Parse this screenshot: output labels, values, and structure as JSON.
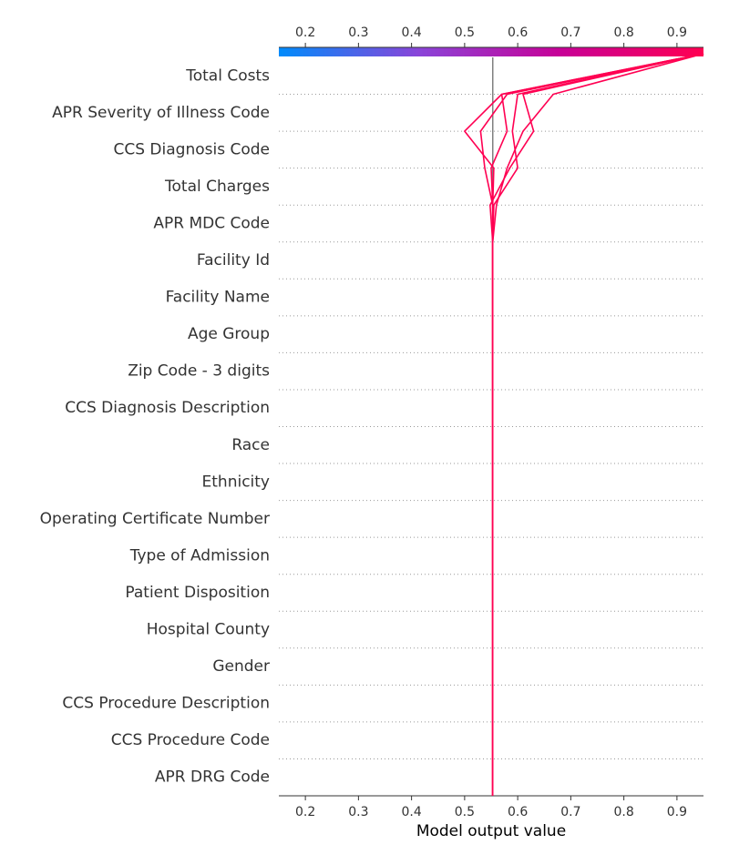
{
  "chart_data": {
    "type": "line",
    "subtype": "shap-decision-plot",
    "title": "",
    "xlabel": "Model output value",
    "ylabel": "",
    "xlim": [
      0.15,
      0.95
    ],
    "x_ticks": [
      0.2,
      0.3,
      0.4,
      0.5,
      0.6,
      0.7,
      0.8,
      0.9
    ],
    "x_tick_labels": [
      "0.2",
      "0.3",
      "0.4",
      "0.5",
      "0.6",
      "0.7",
      "0.8",
      "0.9"
    ],
    "base_value": 0.553,
    "features": [
      "Total Costs",
      "APR Severity of Illness Code",
      "CCS Diagnosis Code",
      "Total Charges",
      "APR MDC Code",
      "Facility Id",
      "Facility Name",
      "Age Group",
      "Zip Code - 3 digits",
      "CCS Diagnosis Description",
      "Race",
      "Ethnicity",
      "Operating Certificate Number",
      "Type of Admission",
      "Patient Disposition",
      "Hospital County",
      "Gender",
      "CCS Procedure Description",
      "CCS Procedure Code",
      "APR DRG Code"
    ],
    "colorbar": {
      "colors": [
        "#008bfb",
        "#8b44d8",
        "#c80096",
        "#ff0052"
      ],
      "range": [
        0.15,
        0.95
      ]
    },
    "line_color": "#ff0052",
    "base_line_color": "#808080",
    "gridlines": "dotted",
    "series": [
      {
        "values": [
          0.553,
          0.553,
          0.555,
          0.5,
          0.57,
          0.95
        ]
      },
      {
        "values": [
          0.553,
          0.553,
          0.538,
          0.53,
          0.58,
          0.95
        ]
      },
      {
        "values": [
          0.553,
          0.553,
          0.55,
          0.58,
          0.57,
          0.95
        ]
      },
      {
        "values": [
          0.553,
          0.555,
          0.6,
          0.59,
          0.6,
          0.95
        ]
      },
      {
        "values": [
          0.553,
          0.548,
          0.585,
          0.63,
          0.61,
          0.95
        ]
      },
      {
        "values": [
          0.553,
          0.56,
          0.58,
          0.61,
          0.667,
          0.95
        ]
      }
    ]
  }
}
